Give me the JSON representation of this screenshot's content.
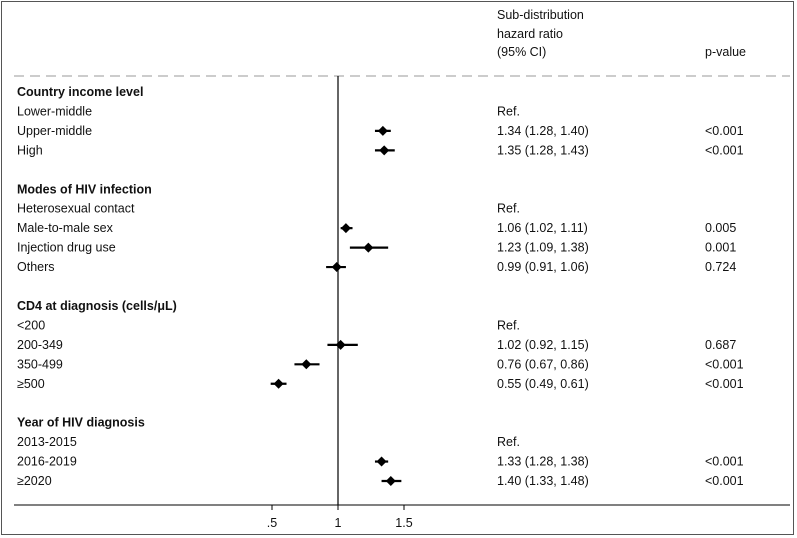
{
  "header": {
    "hr_line1": "Sub-distribution",
    "hr_line2": "hazard ratio",
    "hr_line3": "(95% CI)",
    "pvalue": "p-value"
  },
  "chart_data": {
    "type": "forest",
    "title": "",
    "xlabel": "",
    "ylabel": "",
    "reference_line": 1,
    "x_ticks": [
      0.5,
      1,
      1.5
    ],
    "x_tick_labels": [
      ".5",
      "1",
      "1.5"
    ],
    "groups": [
      {
        "name": "Country income level",
        "rows": [
          {
            "label": "Lower-middle",
            "hr": null,
            "ci_low": null,
            "ci_high": null,
            "hr_text": "Ref.",
            "p": ""
          },
          {
            "label": "Upper-middle",
            "hr": 1.34,
            "ci_low": 1.28,
            "ci_high": 1.4,
            "hr_text": "1.34 (1.28, 1.40)",
            "p": "<0.001"
          },
          {
            "label": "High",
            "hr": 1.35,
            "ci_low": 1.28,
            "ci_high": 1.43,
            "hr_text": "1.35 (1.28, 1.43)",
            "p": "<0.001"
          }
        ]
      },
      {
        "name": "Modes of HIV infection",
        "rows": [
          {
            "label": "Heterosexual contact",
            "hr": null,
            "ci_low": null,
            "ci_high": null,
            "hr_text": "Ref.",
            "p": ""
          },
          {
            "label": "Male-to-male sex",
            "hr": 1.06,
            "ci_low": 1.02,
            "ci_high": 1.11,
            "hr_text": "1.06 (1.02, 1.11)",
            "p": "0.005"
          },
          {
            "label": "Injection drug use",
            "hr": 1.23,
            "ci_low": 1.09,
            "ci_high": 1.38,
            "hr_text": "1.23 (1.09, 1.38)",
            "p": "0.001"
          },
          {
            "label": "Others",
            "hr": 0.99,
            "ci_low": 0.91,
            "ci_high": 1.06,
            "hr_text": "0.99 (0.91, 1.06)",
            "p": "0.724"
          }
        ]
      },
      {
        "name": "CD4 at diagnosis (cells/μL)",
        "rows": [
          {
            "label": "<200",
            "hr": null,
            "ci_low": null,
            "ci_high": null,
            "hr_text": "Ref.",
            "p": ""
          },
          {
            "label": "200-349",
            "hr": 1.02,
            "ci_low": 0.92,
            "ci_high": 1.15,
            "hr_text": "1.02 (0.92, 1.15)",
            "p": "0.687"
          },
          {
            "label": "350-499",
            "hr": 0.76,
            "ci_low": 0.67,
            "ci_high": 0.86,
            "hr_text": "0.76 (0.67, 0.86)",
            "p": "<0.001"
          },
          {
            "label": "≥500",
            "hr": 0.55,
            "ci_low": 0.49,
            "ci_high": 0.61,
            "hr_text": "0.55 (0.49, 0.61)",
            "p": "<0.001"
          }
        ]
      },
      {
        "name": "Year of HIV diagnosis",
        "rows": [
          {
            "label": "2013-2015",
            "hr": null,
            "ci_low": null,
            "ci_high": null,
            "hr_text": "Ref.",
            "p": ""
          },
          {
            "label": "2016-2019",
            "hr": 1.33,
            "ci_low": 1.28,
            "ci_high": 1.38,
            "hr_text": "1.33 (1.28, 1.38)",
            "p": "<0.001"
          },
          {
            "label": "≥2020",
            "hr": 1.4,
            "ci_low": 1.33,
            "ci_high": 1.48,
            "hr_text": "1.40 (1.33, 1.48)",
            "p": "<0.001"
          }
        ]
      }
    ],
    "colors": {
      "marker": "#000000",
      "frame": "#555555",
      "dashed_separator": "#bbbbbb"
    }
  }
}
